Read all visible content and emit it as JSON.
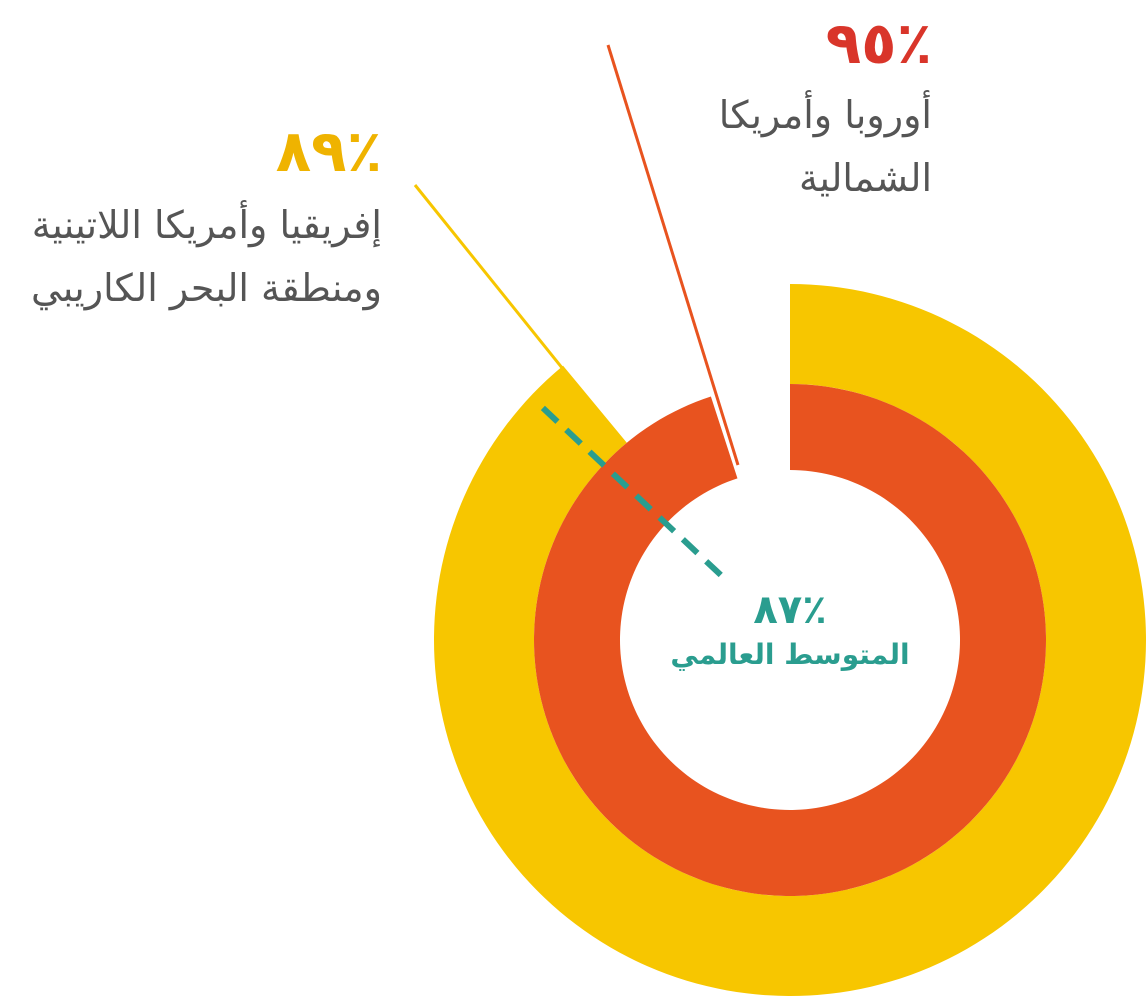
{
  "chart_data": {
    "type": "radial_bar",
    "series": [
      {
        "name": "أوروبا وأمريكا الشمالية",
        "color": "#e8531f",
        "values": [
          95
        ],
        "value_labels": [
          "٪٩٥"
        ],
        "label_color": "#d9352a"
      },
      {
        "name": "إفريقيا وأمريكا اللاتينية ومنطقة البحر الكاريبي",
        "color": "#f7c600",
        "values": [
          89
        ],
        "value_labels": [
          "٪٨٩"
        ],
        "label_color": "#efb300"
      }
    ],
    "average": {
      "name": "المتوسط العالمي",
      "value": 87,
      "label": "٪٨٧",
      "color": "#2a9d8f"
    },
    "ylim": [
      0,
      100
    ]
  }
}
